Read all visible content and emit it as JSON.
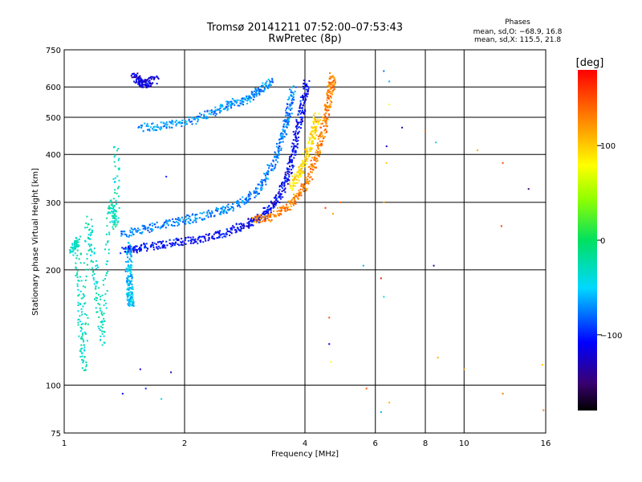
{
  "chart_data": {
    "type": "scatter",
    "title": "Tromsø 20141211 07:52:00–07:53:43",
    "subtitle": "RwPretec (8p)",
    "xlabel": "Frequency [MHz]",
    "ylabel": "Stationary phase Virtual Height [km]",
    "x_scale": "log",
    "y_scale": "log",
    "xlim": [
      1,
      16
    ],
    "ylim": [
      75,
      750
    ],
    "x_ticks": [
      1,
      2,
      4,
      6,
      8,
      10,
      16
    ],
    "y_ticks": [
      75,
      100,
      200,
      300,
      400,
      500,
      600,
      750
    ],
    "grid": true,
    "stats": {
      "title": "Phases",
      "line_o": "mean, sd,O: −68.9, 16.8",
      "line_x": "mean, sd,X: 115.5, 21.8"
    },
    "colorbar": {
      "label": "[deg]",
      "min": -180,
      "max": 180,
      "ticks": [
        100,
        0,
        -100
      ]
    },
    "traces": [
      {
        "name": "o-trace-f2-lower",
        "points": [
          [
            1.4,
            225
          ],
          [
            1.55,
            228
          ],
          [
            1.75,
            232
          ],
          [
            2.0,
            237
          ],
          [
            2.3,
            243
          ],
          [
            2.6,
            252
          ],
          [
            2.9,
            263
          ],
          [
            3.1,
            275
          ],
          [
            3.3,
            292
          ],
          [
            3.5,
            320
          ],
          [
            3.65,
            360
          ],
          [
            3.75,
            410
          ],
          [
            3.85,
            470
          ],
          [
            3.95,
            540
          ],
          [
            4.05,
            620
          ]
        ],
        "phase": -110
      },
      {
        "name": "o-trace-f2-upper",
        "points": [
          [
            1.4,
            248
          ],
          [
            1.6,
            256
          ],
          [
            1.85,
            265
          ],
          [
            2.1,
            272
          ],
          [
            2.4,
            282
          ],
          [
            2.7,
            296
          ],
          [
            3.0,
            318
          ],
          [
            3.2,
            350
          ],
          [
            3.4,
            400
          ],
          [
            3.55,
            460
          ],
          [
            3.65,
            520
          ],
          [
            3.75,
            600
          ]
        ],
        "phase": -75
      },
      {
        "name": "x-trace-f2",
        "points": [
          [
            3.0,
            270
          ],
          [
            3.3,
            275
          ],
          [
            3.6,
            290
          ],
          [
            3.9,
            318
          ],
          [
            4.1,
            350
          ],
          [
            4.3,
            400
          ],
          [
            4.45,
            460
          ],
          [
            4.55,
            530
          ],
          [
            4.65,
            600
          ],
          [
            4.7,
            640
          ]
        ],
        "phase": 130
      },
      {
        "name": "x-trace-f2-inner",
        "points": [
          [
            3.7,
            330
          ],
          [
            3.9,
            360
          ],
          [
            4.05,
            400
          ],
          [
            4.2,
            450
          ],
          [
            4.3,
            510
          ]
        ],
        "phase": 95
      },
      {
        "name": "f-layer-branch",
        "points": [
          [
            1.55,
            470
          ],
          [
            1.8,
            475
          ],
          [
            2.1,
            490
          ],
          [
            2.4,
            520
          ],
          [
            2.6,
            540
          ],
          [
            2.9,
            560
          ],
          [
            3.1,
            590
          ],
          [
            3.3,
            620
          ]
        ],
        "phase": -70
      },
      {
        "name": "top-cluster",
        "points": [
          [
            1.5,
            640
          ],
          [
            1.55,
            620
          ],
          [
            1.6,
            610
          ],
          [
            1.7,
            630
          ]
        ],
        "phase": -120
      },
      {
        "name": "low-freq-vertical",
        "points": [
          [
            1.45,
            230
          ],
          [
            1.45,
            200
          ],
          [
            1.46,
            180
          ],
          [
            1.46,
            170
          ],
          [
            1.47,
            160
          ]
        ],
        "phase": -55
      },
      {
        "name": "low-freq-scatter",
        "points": [
          [
            1.05,
            220
          ],
          [
            1.08,
            240
          ],
          [
            1.1,
            150
          ],
          [
            1.12,
            110
          ],
          [
            1.15,
            270
          ],
          [
            1.2,
            190
          ],
          [
            1.25,
            130
          ],
          [
            1.3,
            300
          ],
          [
            1.35,
            260
          ],
          [
            1.35,
            430
          ]
        ],
        "phase": -30
      }
    ],
    "scatter": [
      {
        "x": 1.4,
        "y": 95,
        "phase": -110
      },
      {
        "x": 1.55,
        "y": 110,
        "phase": -120
      },
      {
        "x": 1.6,
        "y": 98,
        "phase": -95
      },
      {
        "x": 1.75,
        "y": 92,
        "phase": -40
      },
      {
        "x": 1.85,
        "y": 108,
        "phase": -130
      },
      {
        "x": 1.8,
        "y": 350,
        "phase": -100
      },
      {
        "x": 4.9,
        "y": 300,
        "phase": 140
      },
      {
        "x": 4.5,
        "y": 290,
        "phase": 160
      },
      {
        "x": 4.7,
        "y": 280,
        "phase": 120
      },
      {
        "x": 4.6,
        "y": 150,
        "phase": 150
      },
      {
        "x": 4.6,
        "y": 128,
        "phase": -110
      },
      {
        "x": 4.65,
        "y": 115,
        "phase": 80
      },
      {
        "x": 5.6,
        "y": 205,
        "phase": -60
      },
      {
        "x": 5.7,
        "y": 98,
        "phase": 150
      },
      {
        "x": 6.3,
        "y": 660,
        "phase": -80
      },
      {
        "x": 6.5,
        "y": 620,
        "phase": -60
      },
      {
        "x": 6.5,
        "y": 540,
        "phase": 80
      },
      {
        "x": 6.4,
        "y": 420,
        "phase": -130
      },
      {
        "x": 6.4,
        "y": 380,
        "phase": 100
      },
      {
        "x": 6.3,
        "y": 300,
        "phase": 120
      },
      {
        "x": 6.2,
        "y": 190,
        "phase": 170
      },
      {
        "x": 6.3,
        "y": 170,
        "phase": -50
      },
      {
        "x": 6.5,
        "y": 90,
        "phase": 110
      },
      {
        "x": 6.2,
        "y": 85,
        "phase": -60
      },
      {
        "x": 7.0,
        "y": 470,
        "phase": -140
      },
      {
        "x": 8.0,
        "y": 460,
        "phase": 140
      },
      {
        "x": 8.5,
        "y": 430,
        "phase": -40
      },
      {
        "x": 8.4,
        "y": 205,
        "phase": -140
      },
      {
        "x": 8.6,
        "y": 118,
        "phase": 110
      },
      {
        "x": 10.0,
        "y": 110,
        "phase": 120
      },
      {
        "x": 10.8,
        "y": 410,
        "phase": 110
      },
      {
        "x": 12.5,
        "y": 380,
        "phase": 150
      },
      {
        "x": 12.4,
        "y": 260,
        "phase": 160
      },
      {
        "x": 12.5,
        "y": 95,
        "phase": 130
      },
      {
        "x": 14.5,
        "y": 325,
        "phase": -150
      },
      {
        "x": 15.7,
        "y": 113,
        "phase": 100
      },
      {
        "x": 15.8,
        "y": 86,
        "phase": 130
      }
    ]
  }
}
